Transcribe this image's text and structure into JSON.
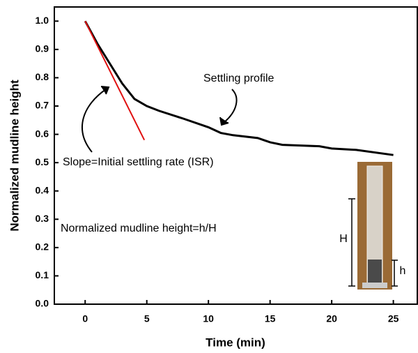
{
  "chart_data": {
    "type": "line",
    "x_label": "Time (min)",
    "y_label": "Normalized mudline height",
    "series": [
      {
        "color": "#000000",
        "x": [
          0,
          1,
          2,
          3,
          4,
          5,
          6,
          8,
          10,
          11,
          12,
          14,
          15,
          16,
          19,
          20,
          22,
          25
        ],
        "values": [
          1.0,
          0.92,
          0.85,
          0.78,
          0.725,
          0.7,
          0.683,
          0.655,
          0.625,
          0.605,
          0.597,
          0.587,
          0.572,
          0.563,
          0.558,
          0.55,
          0.545,
          0.527
        ]
      },
      {
        "color": "#e01010",
        "x": [
          0,
          4.8
        ],
        "values": [
          1.0,
          0.58
        ]
      }
    ],
    "xlim": [
      -2.5,
      27
    ],
    "xticks": [
      0,
      5,
      10,
      15,
      20,
      25
    ],
    "ylim": [
      0,
      1.05
    ],
    "yticks": [
      {
        "value": 0,
        "label": "0.0"
      },
      0.1,
      0.2,
      0.3,
      0.4,
      0.5,
      0.6,
      0.7,
      0.8,
      0.9,
      {
        "value": 1,
        "label": "1.0"
      }
    ],
    "annotations": [
      "Settling profile",
      "Slope=Initial settling rate (ISR)",
      "Normalized mudline height=h/H",
      "H",
      "h"
    ]
  }
}
